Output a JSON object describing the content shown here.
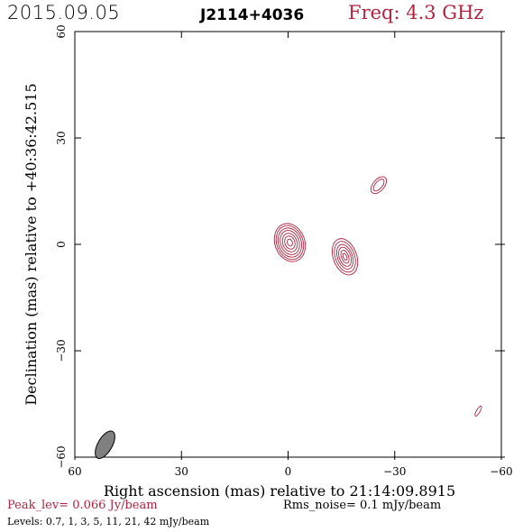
{
  "header": {
    "date": "2015.09.05",
    "source": "J2114+4036",
    "frequency": "Freq: 4.3 GHz"
  },
  "footer": {
    "peak": "Peak_lev=  0.066 Jy/beam",
    "rms": "Rms_noise=  0.1 mJy/beam",
    "levels": "Levels: 0.7,   1,   3,   5,  11,  21,  42 mJy/beam"
  },
  "colors": {
    "contour": "#b0243f",
    "beam": "#808080",
    "frame": "#000000"
  },
  "chart_data": {
    "type": "contour",
    "xlabel": "Right ascension (mas) relative to 21:14:09.8915",
    "ylabel": "Declination (mas) relative to +40:36:42.515",
    "xlim": [
      60,
      -60
    ],
    "ylim": [
      -60,
      60
    ],
    "xticks": [
      60,
      30,
      0,
      -30,
      -60
    ],
    "yticks": [
      -60,
      -30,
      0,
      30,
      60
    ],
    "xtick_labels": [
      "60",
      "30",
      "0",
      "−30",
      "−60"
    ],
    "ytick_labels": [
      "−60",
      "−30",
      "0",
      "30",
      "60"
    ],
    "levels_mJy_per_beam": [
      0.7,
      1,
      3,
      5,
      11,
      21,
      42
    ],
    "components": [
      {
        "x": -0.5,
        "y": 0.5,
        "rx": [
          4.2,
          3.7,
          3.2,
          2.6,
          2.0,
          1.4,
          0.7
        ],
        "ry": [
          5.5,
          4.9,
          4.2,
          3.5,
          2.7,
          1.9,
          1.0
        ],
        "angle": -20
      },
      {
        "x": -16.0,
        "y": -3.5,
        "rx": [
          3.3,
          2.7,
          2.1,
          1.6,
          1.0,
          0.5
        ],
        "ry": [
          5.3,
          4.5,
          3.6,
          2.8,
          1.9,
          1.0
        ],
        "angle": -20
      },
      {
        "x": -25.5,
        "y": 16.7,
        "rx": [
          1.6,
          1.0
        ],
        "ry": [
          2.8,
          2.0
        ],
        "angle": 40
      },
      {
        "x": -53.5,
        "y": -47.0,
        "rx": [
          0.5
        ],
        "ry": [
          1.6
        ],
        "angle": 30
      }
    ],
    "beam": {
      "x": 51.5,
      "y": -56.5,
      "major_mas": 4.3,
      "minor_mas": 2.0,
      "pa_deg": 30
    }
  }
}
